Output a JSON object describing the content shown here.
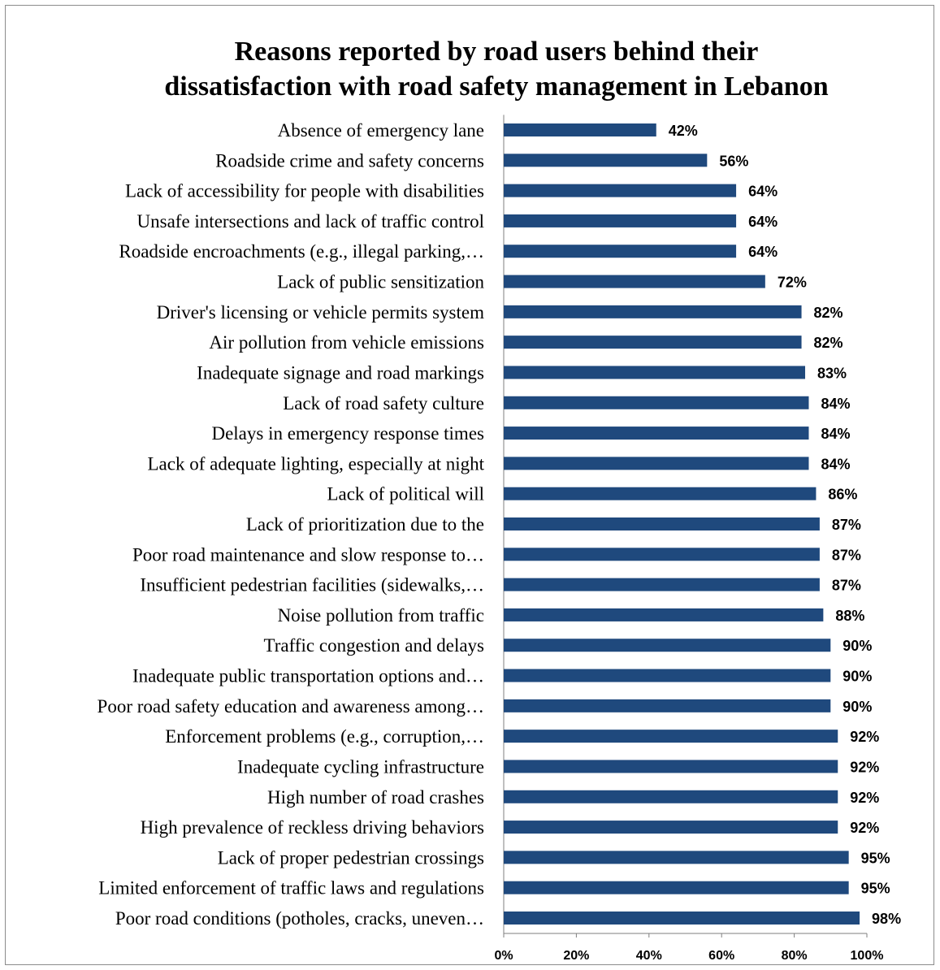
{
  "chart_data": {
    "type": "bar",
    "orientation": "horizontal",
    "title_lines": [
      "Reasons reported by road users behind their",
      "dissatisfaction with road safety management in Lebanon"
    ],
    "categories": [
      "Absence of emergency lane",
      "Roadside crime and safety concerns",
      "Lack of accessibility for people with disabilities",
      "Unsafe intersections and lack of traffic control",
      "Roadside encroachments (e.g., illegal parking,…",
      "Lack of public sensitization",
      "Driver's licensing or vehicle permits system",
      "Air pollution from vehicle emissions",
      "Inadequate signage and road markings",
      "Lack of road safety culture",
      "Delays in emergency response times",
      "Lack of adequate lighting, especially at night",
      "Lack of political will",
      "Lack of prioritization due to the",
      "Poor road maintenance and slow response to…",
      "Insufficient pedestrian facilities (sidewalks,…",
      "Noise pollution from traffic",
      "Traffic congestion and delays",
      "Inadequate public transportation options and…",
      "Poor road safety education and awareness among…",
      "Enforcement problems (e.g., corruption,…",
      "Inadequate cycling infrastructure",
      "High number of road crashes",
      "High prevalence of reckless driving behaviors",
      "Lack of proper pedestrian crossings",
      "Limited enforcement of traffic laws and regulations",
      "Poor road conditions (potholes, cracks, uneven…"
    ],
    "values": [
      42,
      56,
      64,
      64,
      64,
      72,
      82,
      82,
      83,
      84,
      84,
      84,
      86,
      87,
      87,
      87,
      88,
      90,
      90,
      90,
      92,
      92,
      92,
      92,
      95,
      95,
      98
    ],
    "data_labels": [
      "42%",
      "56%",
      "64%",
      "64%",
      "64%",
      "72%",
      "82%",
      "82%",
      "83%",
      "84%",
      "84%",
      "84%",
      "86%",
      "87%",
      "87%",
      "87%",
      "88%",
      "90%",
      "90%",
      "90%",
      "92%",
      "92%",
      "92%",
      "92%",
      "95%",
      "95%",
      "98%"
    ],
    "x_ticks": [
      "0%",
      "20%",
      "40%",
      "60%",
      "80%",
      "100%"
    ],
    "xlim": [
      0,
      100
    ],
    "grid": false,
    "legend": "none",
    "bar_color": "#1f497d"
  }
}
